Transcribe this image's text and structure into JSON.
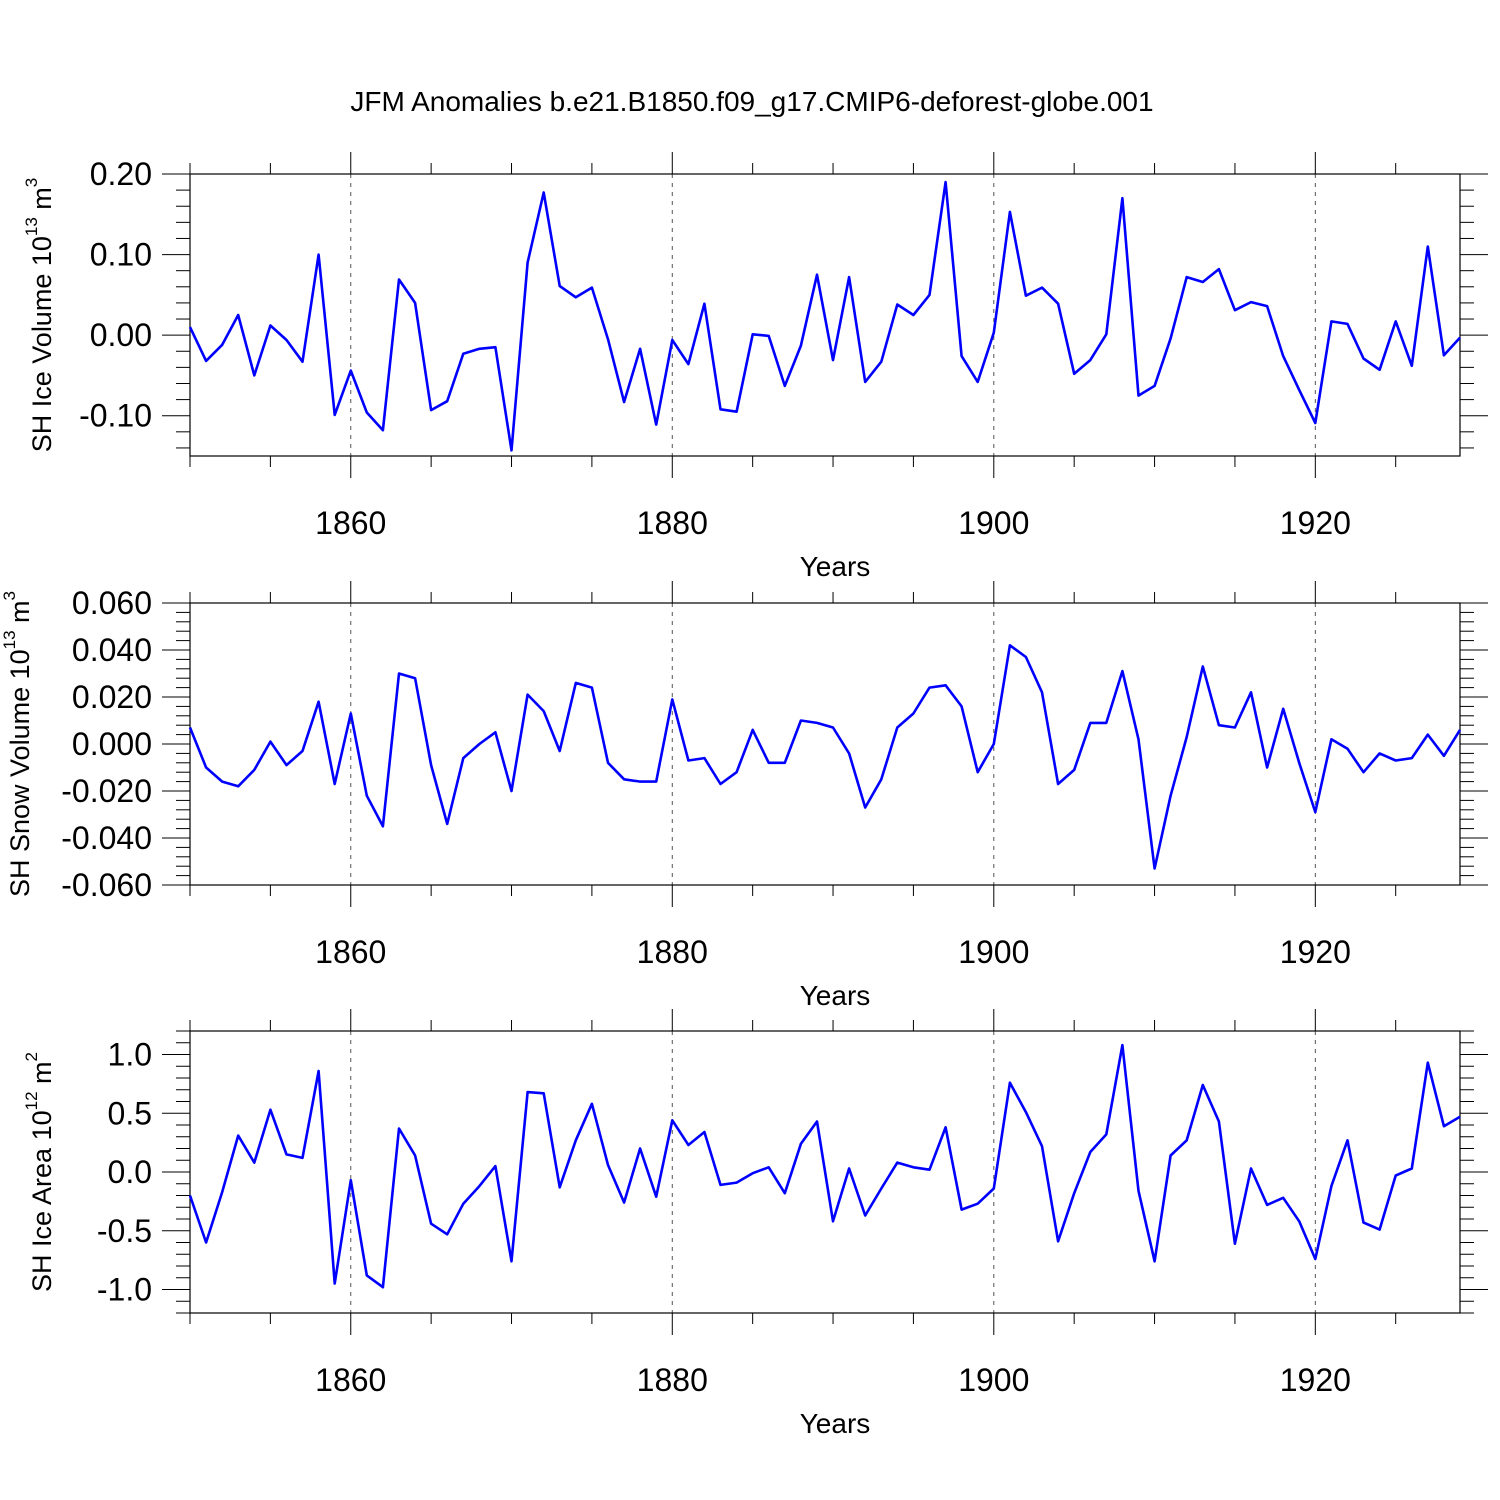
{
  "title": "JFM Anomalies b.e21.B1850.f09_g17.CMIP6-deforest-globe.001",
  "colors": {
    "line": "#0000ff",
    "axis": "#000000",
    "grid": "#555555",
    "background": "#ffffff"
  },
  "chart_data": [
    {
      "type": "line",
      "ylabel": "SH Ice Volume 10",
      "ylabel_exp": "13",
      "ylabel_unit": " m",
      "ylabel_unit_exp": "3",
      "xlabel": "Years",
      "xlim": [
        1850,
        1929
      ],
      "ylim": [
        -0.15,
        0.2
      ],
      "yticks": [
        {
          "v": 0.2,
          "label": "0.20"
        },
        {
          "v": 0.1,
          "label": "0.10"
        },
        {
          "v": 0.0,
          "label": "0.00"
        },
        {
          "v": -0.1,
          "label": "-0.10"
        }
      ],
      "xticks": [
        {
          "v": 1860,
          "label": "1860"
        },
        {
          "v": 1880,
          "label": "1880"
        },
        {
          "v": 1900,
          "label": "1900"
        },
        {
          "v": 1920,
          "label": "1920"
        }
      ],
      "gridlines_x": [
        1860,
        1880,
        1900,
        1920
      ],
      "x_start": 1850,
      "values": [
        0.01,
        -0.032,
        -0.012,
        0.025,
        -0.05,
        0.012,
        -0.006,
        -0.033,
        0.1,
        -0.099,
        -0.044,
        -0.096,
        -0.118,
        0.069,
        0.04,
        -0.093,
        -0.082,
        -0.023,
        -0.017,
        -0.015,
        -0.143,
        0.09,
        0.177,
        0.061,
        0.047,
        0.059,
        -0.005,
        -0.083,
        -0.017,
        -0.111,
        -0.006,
        -0.036,
        0.039,
        -0.092,
        -0.095,
        0.001,
        -0.001,
        -0.063,
        -0.013,
        0.075,
        -0.031,
        0.072,
        -0.058,
        -0.033,
        0.038,
        0.025,
        0.05,
        0.19,
        -0.026,
        -0.058,
        0.003,
        0.153,
        0.049,
        0.059,
        0.039,
        -0.048,
        -0.031,
        0.001,
        0.17,
        -0.075,
        -0.063,
        -0.004,
        0.072,
        0.066,
        0.082,
        0.031,
        0.041,
        0.036,
        -0.026,
        -0.068,
        -0.109,
        0.017,
        0.014,
        -0.029,
        -0.043,
        0.017,
        -0.038,
        0.11,
        -0.025,
        -0.003
      ]
    },
    {
      "type": "line",
      "ylabel": "SH Snow Volume 10",
      "ylabel_exp": "13",
      "ylabel_unit": " m",
      "ylabel_unit_exp": "3",
      "xlabel": "Years",
      "xlim": [
        1850,
        1929
      ],
      "ylim": [
        -0.06,
        0.06
      ],
      "yticks": [
        {
          "v": 0.06,
          "label": "0.060"
        },
        {
          "v": 0.04,
          "label": "0.040"
        },
        {
          "v": 0.02,
          "label": "0.020"
        },
        {
          "v": 0.0,
          "label": "0.000"
        },
        {
          "v": -0.02,
          "label": "-0.020"
        },
        {
          "v": -0.04,
          "label": "-0.040"
        },
        {
          "v": -0.06,
          "label": "-0.060"
        }
      ],
      "xticks": [
        {
          "v": 1860,
          "label": "1860"
        },
        {
          "v": 1880,
          "label": "1880"
        },
        {
          "v": 1900,
          "label": "1900"
        },
        {
          "v": 1920,
          "label": "1920"
        }
      ],
      "gridlines_x": [
        1860,
        1880,
        1900,
        1920
      ],
      "x_start": 1850,
      "values": [
        0.007,
        -0.01,
        -0.016,
        -0.018,
        -0.011,
        0.001,
        -0.009,
        -0.003,
        0.018,
        -0.017,
        0.013,
        -0.022,
        -0.035,
        0.03,
        0.028,
        -0.009,
        -0.034,
        -0.006,
        0.0,
        0.005,
        -0.02,
        0.021,
        0.014,
        -0.003,
        0.026,
        0.024,
        -0.008,
        -0.015,
        -0.016,
        -0.016,
        0.019,
        -0.007,
        -0.006,
        -0.017,
        -0.012,
        0.006,
        -0.008,
        -0.008,
        0.01,
        0.009,
        0.007,
        -0.004,
        -0.027,
        -0.015,
        0.007,
        0.013,
        0.024,
        0.025,
        0.016,
        -0.012,
        0.0,
        0.042,
        0.037,
        0.022,
        -0.017,
        -0.011,
        0.009,
        0.009,
        0.031,
        0.002,
        -0.053,
        -0.022,
        0.003,
        0.033,
        0.008,
        0.007,
        0.022,
        -0.01,
        0.015,
        -0.008,
        -0.029,
        0.002,
        -0.002,
        -0.012,
        -0.004,
        -0.007,
        -0.006,
        0.004,
        -0.005,
        0.006
      ]
    },
    {
      "type": "line",
      "ylabel": "SH Ice Area 10",
      "ylabel_exp": "12",
      "ylabel_unit": " m",
      "ylabel_unit_exp": "2",
      "xlabel": "Years",
      "xlim": [
        1850,
        1929
      ],
      "ylim": [
        -1.2,
        1.2
      ],
      "yticks": [
        {
          "v": 1.0,
          "label": "1.0"
        },
        {
          "v": 0.5,
          "label": "0.5"
        },
        {
          "v": 0.0,
          "label": "0.0"
        },
        {
          "v": -0.5,
          "label": "-0.5"
        },
        {
          "v": -1.0,
          "label": "-1.0"
        }
      ],
      "xticks": [
        {
          "v": 1860,
          "label": "1860"
        },
        {
          "v": 1880,
          "label": "1880"
        },
        {
          "v": 1900,
          "label": "1900"
        },
        {
          "v": 1920,
          "label": "1920"
        }
      ],
      "gridlines_x": [
        1860,
        1880,
        1900,
        1920
      ],
      "x_start": 1850,
      "values": [
        -0.2,
        -0.6,
        -0.17,
        0.31,
        0.08,
        0.53,
        0.15,
        0.12,
        0.86,
        -0.95,
        -0.07,
        -0.88,
        -0.98,
        0.37,
        0.14,
        -0.44,
        -0.53,
        -0.27,
        -0.12,
        0.05,
        -0.76,
        0.68,
        0.67,
        -0.13,
        0.27,
        0.58,
        0.06,
        -0.26,
        0.2,
        -0.21,
        0.44,
        0.23,
        0.34,
        -0.11,
        -0.09,
        -0.01,
        0.04,
        -0.18,
        0.24,
        0.43,
        -0.42,
        0.03,
        -0.37,
        -0.14,
        0.08,
        0.04,
        0.02,
        0.38,
        -0.32,
        -0.27,
        -0.14,
        0.76,
        0.51,
        0.22,
        -0.59,
        -0.18,
        0.17,
        0.32,
        1.08,
        -0.16,
        -0.76,
        0.14,
        0.27,
        0.74,
        0.43,
        -0.61,
        0.03,
        -0.28,
        -0.22,
        -0.42,
        -0.74,
        -0.12,
        0.27,
        -0.43,
        -0.49,
        -0.03,
        0.03,
        0.93,
        0.39,
        0.47
      ]
    }
  ]
}
